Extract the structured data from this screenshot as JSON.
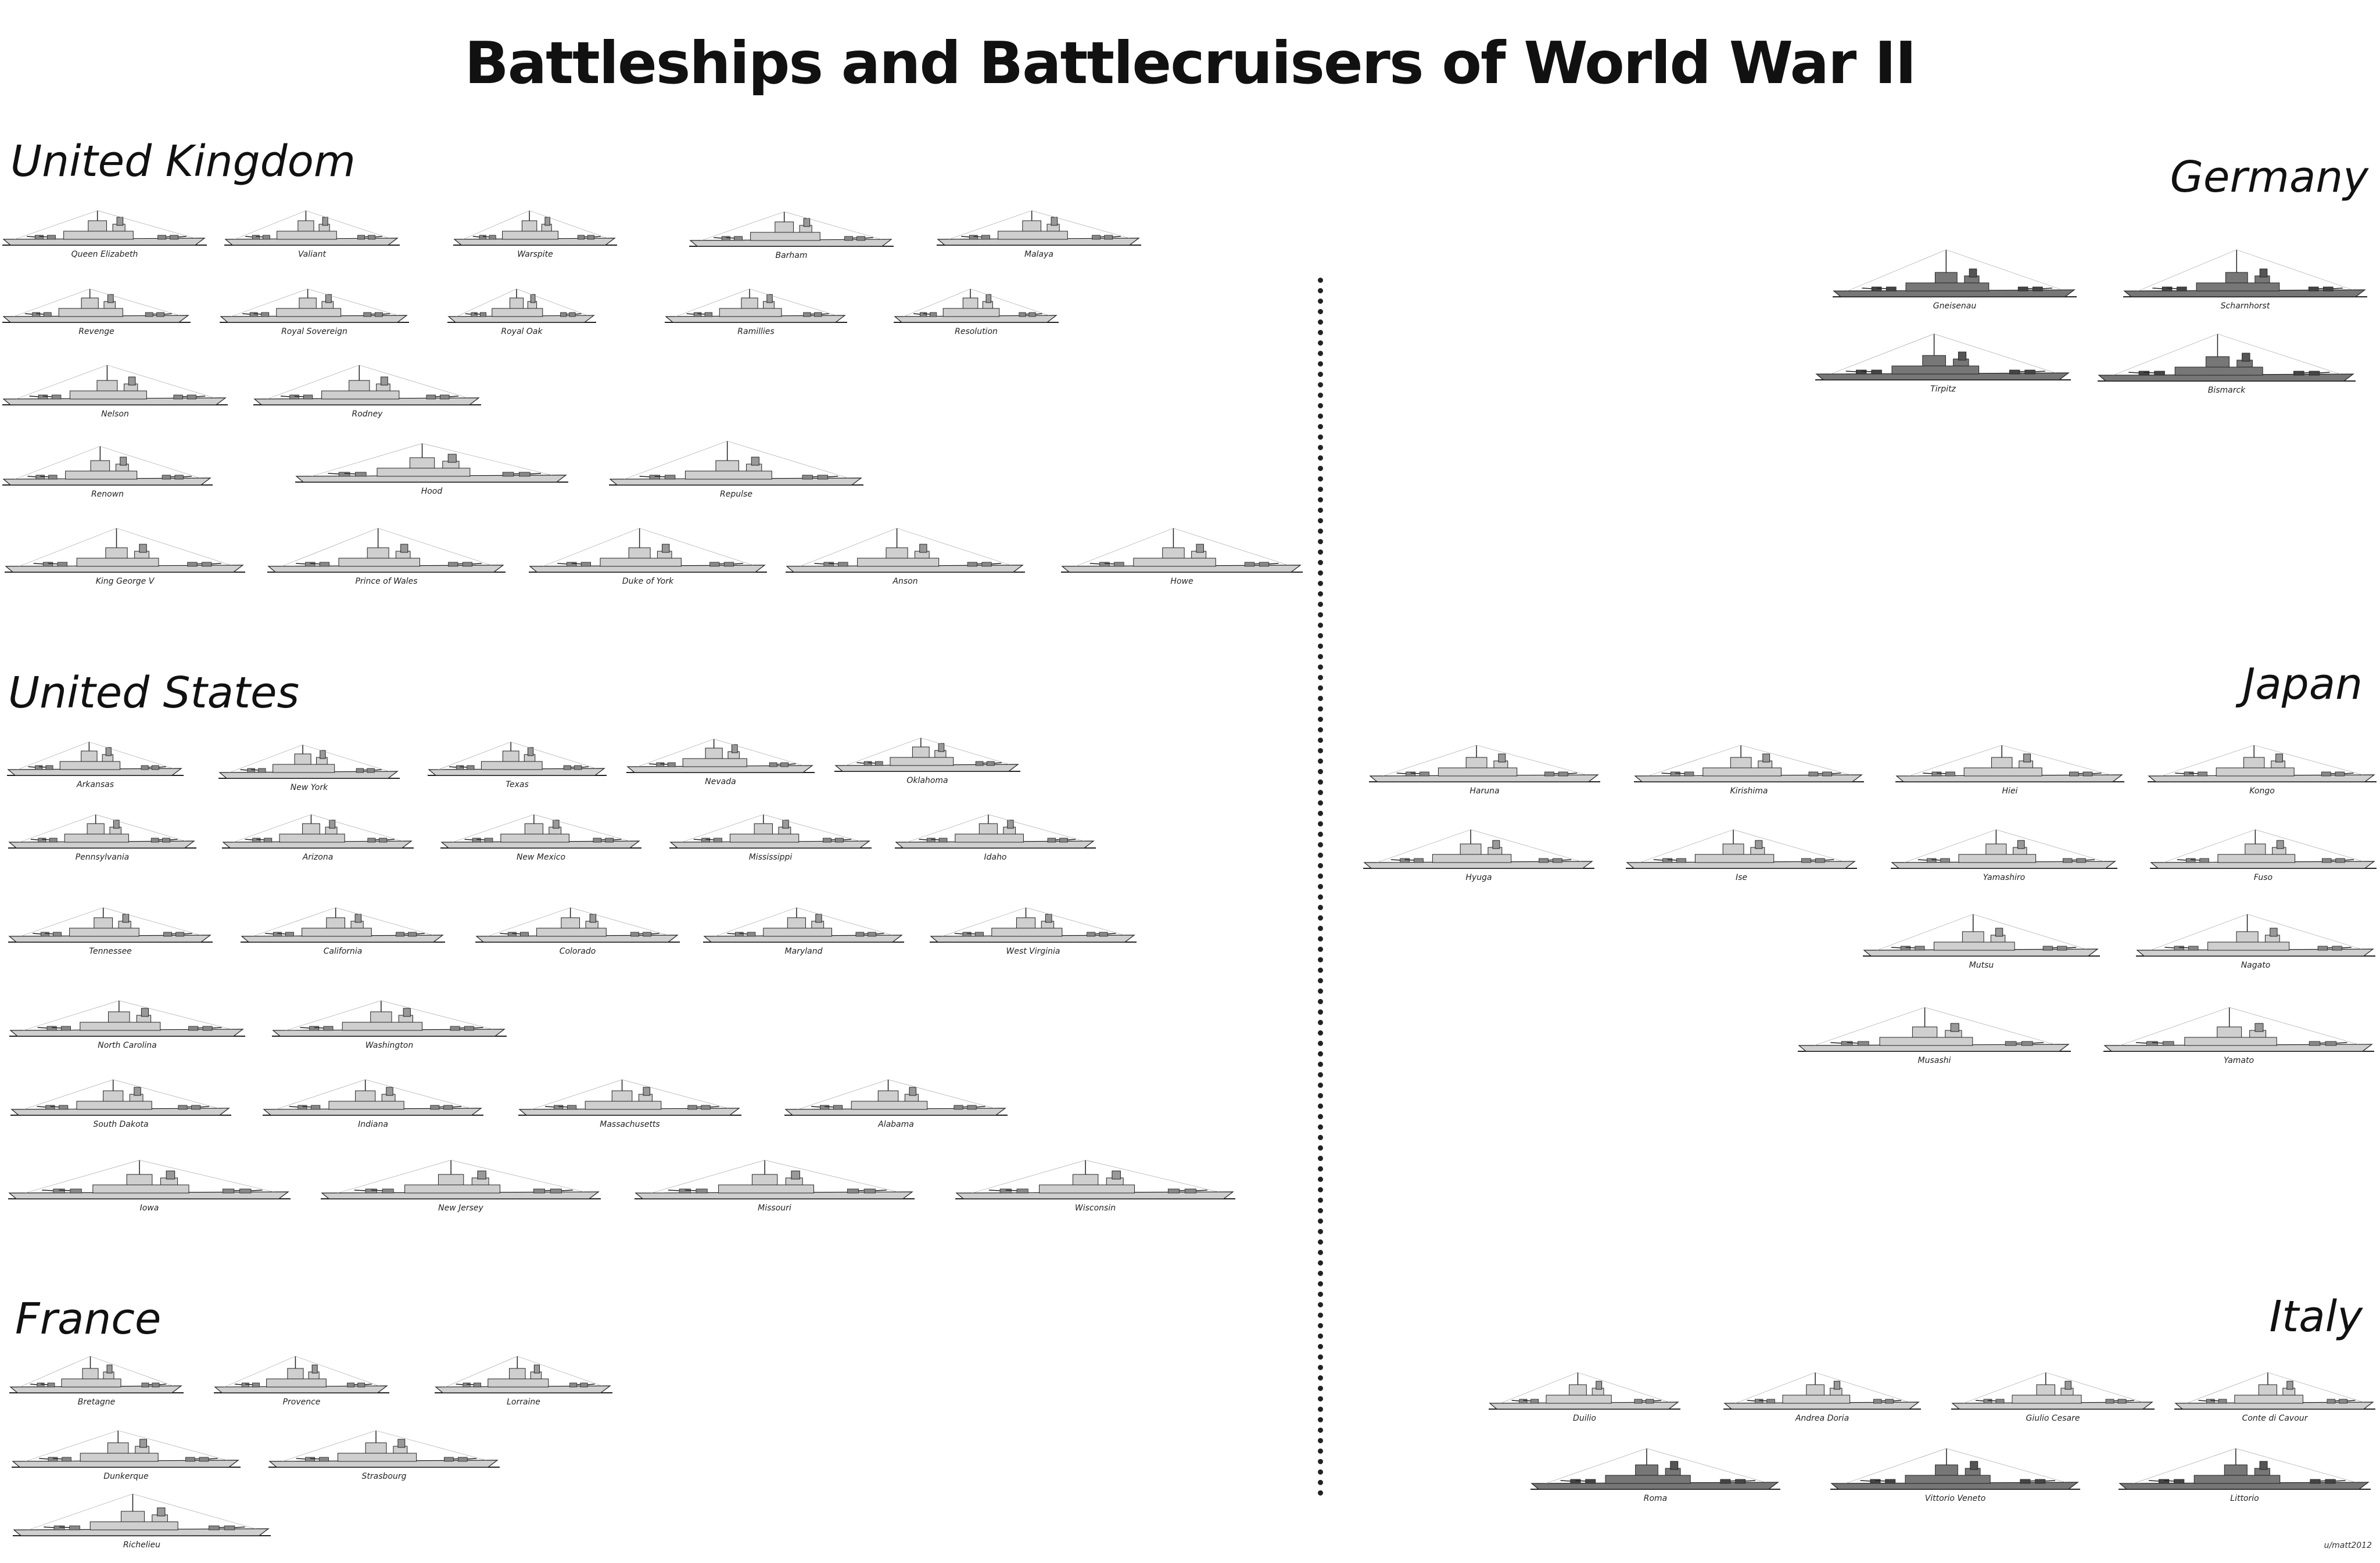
{
  "title": "Battleships and Battlecruisers of World War II",
  "credit": "u/matt2012",
  "sections": {
    "uk": "United Kingdom",
    "us": "United States",
    "france": "France",
    "germany": "Germany",
    "japan": "Japan",
    "italy": "Italy"
  },
  "ships": [
    "Queen Elizabeth",
    "Valiant",
    "Warspite",
    "Barham",
    "Malaya",
    "Revenge",
    "Royal Sovereign",
    "Royal Oak",
    "Ramillies",
    "Resolution",
    "Nelson",
    "Rodney",
    "Renown",
    "Hood",
    "Repulse",
    "King George V",
    "Prince of Wales",
    "Duke of York",
    "Anson",
    "Howe",
    "Arkansas",
    "New York",
    "Texas",
    "Nevada",
    "Oklahoma",
    "Pennsylvania",
    "Arizona",
    "New Mexico",
    "Mississippi",
    "Idaho",
    "Tennessee",
    "California",
    "Colorado",
    "Maryland",
    "West Virginia",
    "North Carolina",
    "Washington",
    "South Dakota",
    "Indiana",
    "Massachusetts",
    "Alabama",
    "Iowa",
    "New Jersey",
    "Missouri",
    "Wisconsin",
    "Bretagne",
    "Provence",
    "Lorraine",
    "Dunkerque",
    "Strasbourg",
    "Richelieu",
    "Gneisenau",
    "Scharnhorst",
    "Tirpitz",
    "Bismarck",
    "Haruna",
    "Kirishima",
    "Hiei",
    "Kongo",
    "Hyuga",
    "Ise",
    "Yamashiro",
    "Fuso",
    "Mutsu",
    "Nagato",
    "Musashi",
    "Yamato",
    "Duilio",
    "Andrea Doria",
    "Giulio Cesare",
    "Conte di Cavour",
    "Roma",
    "Vittorio Veneto",
    "Littorio"
  ],
  "colors": {
    "hull_light": "#cfcfcf",
    "hull_dark": "#777777",
    "ink": "#222222"
  }
}
